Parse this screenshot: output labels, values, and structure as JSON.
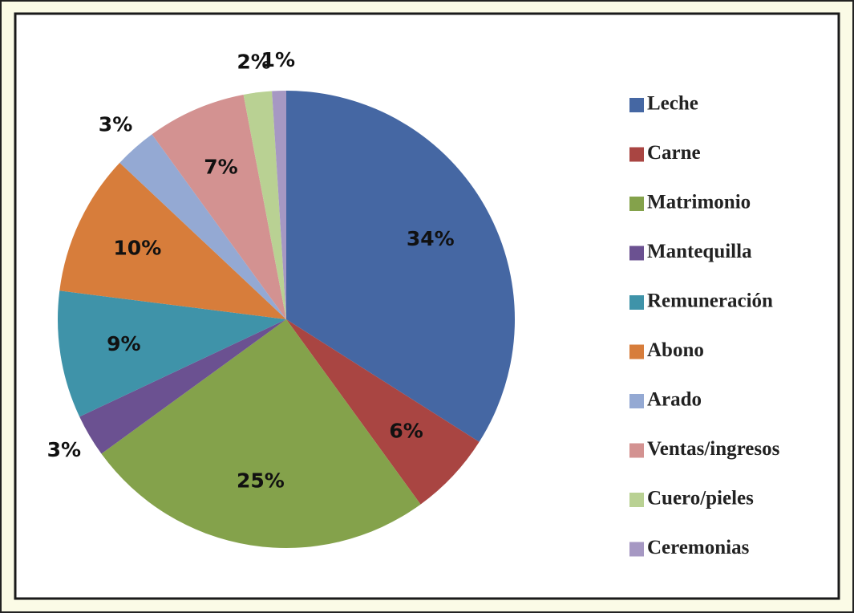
{
  "chart_data": {
    "type": "pie",
    "categories": [
      "Leche",
      "Carne",
      "Matrimonio",
      "Mantequilla",
      "Remuneración",
      "Abono",
      "Arado",
      "Ventas/ingresos",
      "Cuero/pieles",
      "Ceremonias"
    ],
    "values": [
      34,
      6,
      25,
      3,
      9,
      10,
      3,
      7,
      2,
      1
    ],
    "value_labels": [
      "34%",
      "6%",
      "25%",
      "3%",
      "9%",
      "10%",
      "3%",
      "7%",
      "2%",
      "1%"
    ],
    "colors": [
      "#4567a3",
      "#a94542",
      "#84a24b",
      "#6b5191",
      "#3f93a9",
      "#d77d3b",
      "#94a9d3",
      "#d39291",
      "#b9d193",
      "#a698c3"
    ],
    "legend": "right"
  }
}
